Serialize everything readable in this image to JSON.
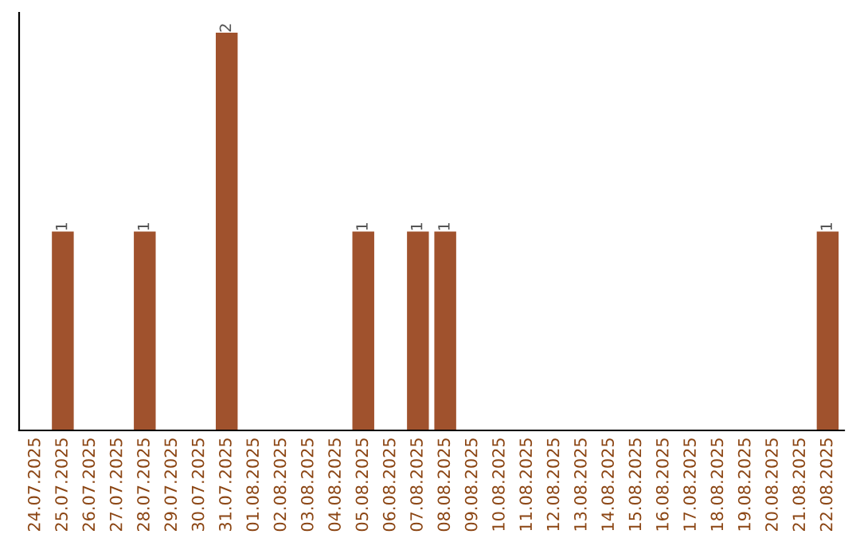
{
  "chart_data": {
    "type": "bar",
    "categories": [
      "24.07.2025",
      "25.07.2025",
      "26.07.2025",
      "27.07.2025",
      "28.07.2025",
      "29.07.2025",
      "30.07.2025",
      "31.07.2025",
      "01.08.2025",
      "02.08.2025",
      "03.08.2025",
      "04.08.2025",
      "05.08.2025",
      "06.08.2025",
      "07.08.2025",
      "08.08.2025",
      "09.08.2025",
      "10.08.2025",
      "11.08.2025",
      "12.08.2025",
      "13.08.2025",
      "14.08.2025",
      "15.08.2025",
      "16.08.2025",
      "17.08.2025",
      "18.08.2025",
      "19.08.2025",
      "20.08.2025",
      "21.08.2025",
      "22.08.2025"
    ],
    "values": [
      0,
      1,
      0,
      0,
      1,
      0,
      0,
      2,
      0,
      0,
      0,
      0,
      1,
      0,
      1,
      1,
      0,
      0,
      0,
      0,
      0,
      0,
      0,
      0,
      0,
      0,
      0,
      0,
      0,
      1
    ],
    "color": "#a0522d",
    "value_labels": [
      null,
      "1",
      null,
      null,
      "1",
      null,
      null,
      "2",
      null,
      null,
      null,
      null,
      "1",
      null,
      "1",
      "1",
      null,
      null,
      null,
      null,
      null,
      null,
      null,
      null,
      null,
      null,
      null,
      null,
      null,
      "1"
    ],
    "grid": false,
    "legend": false
  }
}
